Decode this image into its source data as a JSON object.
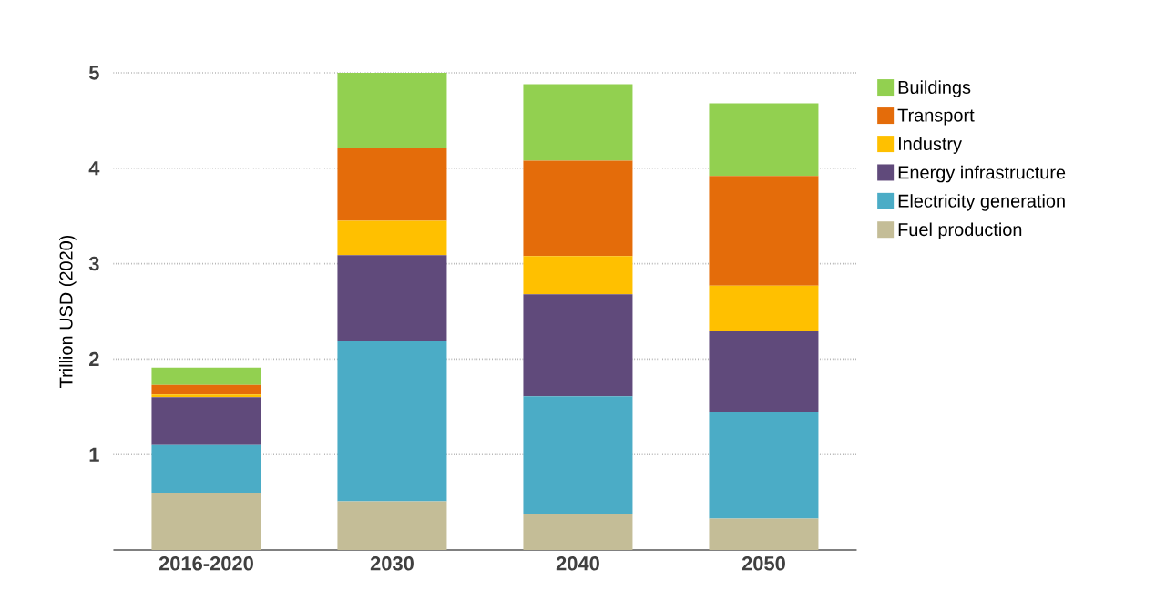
{
  "chart_data": {
    "type": "bar",
    "stacked": true,
    "ylabel": "Trillion USD (2020)",
    "categories": [
      "2016-2020",
      "2030",
      "2040",
      "2050"
    ],
    "series": [
      {
        "name": "Fuel production",
        "color": "#c4bd97",
        "values": [
          0.6,
          0.51,
          0.38,
          0.33
        ]
      },
      {
        "name": "Electricity generation",
        "color": "#4bacc6",
        "values": [
          0.5,
          1.68,
          1.23,
          1.11
        ]
      },
      {
        "name": "Energy infrastructure",
        "color": "#604a7b",
        "values": [
          0.5,
          0.9,
          1.07,
          0.85
        ]
      },
      {
        "name": "Industry",
        "color": "#ffc000",
        "values": [
          0.03,
          0.36,
          0.4,
          0.48
        ]
      },
      {
        "name": "Transport",
        "color": "#e46c0a",
        "values": [
          0.1,
          0.76,
          1.0,
          1.15
        ]
      },
      {
        "name": "Buildings",
        "color": "#92d050",
        "values": [
          0.18,
          0.79,
          0.8,
          0.76
        ]
      }
    ],
    "ylim": [
      0,
      5
    ],
    "yticks": [
      1,
      2,
      3,
      4,
      5
    ],
    "grid": "y",
    "legend": "right"
  }
}
